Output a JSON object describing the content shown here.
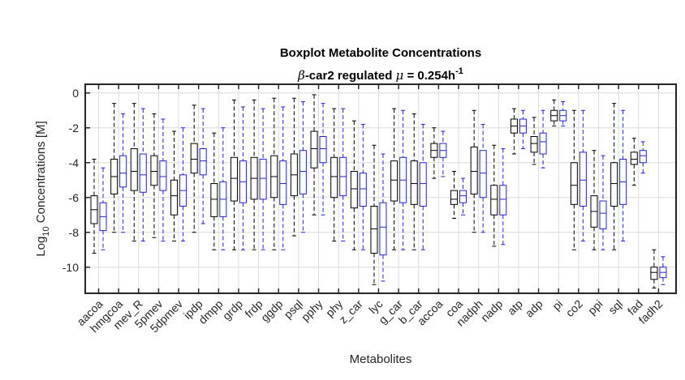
{
  "chart_data": {
    "type": "box",
    "title_line1": "Boxplot Metabolite Concentrations",
    "title_line2": {
      "beta": "β",
      "part1": "-car2 regulated ",
      "mu": "μ",
      "part2": " = 0.254h",
      "sup": "-1"
    },
    "xlabel": "Metabolites",
    "ylabel": {
      "prefix": "Log",
      "sub": "10",
      "suffix": " Concentrations [M]"
    },
    "ylim": [
      -11.5,
      0.5
    ],
    "yticks": [
      0,
      -2,
      -4,
      -6,
      -8,
      -10
    ],
    "grid": true,
    "categories": [
      "aacoa",
      "hmgcoa",
      "mev_R",
      "5pmev",
      "5dpmev",
      "ipdp",
      "dmpp",
      "grdp",
      "frdp",
      "ggdp",
      "psql",
      "pphy",
      "phy",
      "z_car",
      "lyc",
      "g_car",
      "b_car",
      "accoa",
      "coa",
      "nadph",
      "nadp",
      "atp",
      "adp",
      "pi",
      "co2",
      "ppi",
      "sql",
      "fad",
      "fadh2"
    ],
    "series": [
      {
        "color": "#000000",
        "boxes": [
          {
            "min": -9.2,
            "q1": -7.5,
            "median": -6.7,
            "q3": -5.9,
            "max": -3.8
          },
          {
            "min": -8.0,
            "q1": -5.8,
            "median": -4.8,
            "q3": -3.8,
            "max": -0.6
          },
          {
            "min": -8.5,
            "q1": -5.6,
            "median": -4.5,
            "q3": -3.2,
            "max": -0.6
          },
          {
            "min": -8.3,
            "q1": -5.3,
            "median": -4.5,
            "q3": -3.6,
            "max": -1.2
          },
          {
            "min": -8.5,
            "q1": -7.0,
            "median": -5.9,
            "q3": -5.0,
            "max": -2.2
          },
          {
            "min": -8.0,
            "q1": -4.6,
            "median": -3.8,
            "q3": -2.9,
            "max": -0.7
          },
          {
            "min": -9.0,
            "q1": -7.1,
            "median": -6.1,
            "q3": -5.2,
            "max": -2.3
          },
          {
            "min": -9.0,
            "q1": -6.2,
            "median": -4.9,
            "q3": -3.7,
            "max": -0.4
          },
          {
            "min": -9.0,
            "q1": -6.1,
            "median": -4.9,
            "q3": -3.7,
            "max": -0.4
          },
          {
            "min": -9.0,
            "q1": -6.0,
            "median": -4.8,
            "q3": -3.6,
            "max": -0.3
          },
          {
            "min": -8.2,
            "q1": -5.9,
            "median": -4.7,
            "q3": -3.5,
            "max": -0.3
          },
          {
            "min": -7.0,
            "q1": -4.3,
            "median": -3.2,
            "q3": -2.2,
            "max": -0.1
          },
          {
            "min": -8.5,
            "q1": -6.0,
            "median": -4.8,
            "q3": -3.7,
            "max": -0.9
          },
          {
            "min": -9.0,
            "q1": -6.6,
            "median": -5.5,
            "q3": -4.5,
            "max": -1.6
          },
          {
            "min": -11.0,
            "q1": -9.2,
            "median": -7.8,
            "q3": -6.5,
            "max": -3.0
          },
          {
            "min": -9.0,
            "q1": -6.2,
            "median": -5.0,
            "q3": -3.9,
            "max": -0.9
          },
          {
            "min": -9.0,
            "q1": -6.4,
            "median": -5.2,
            "q3": -3.9,
            "max": -1.2
          },
          {
            "min": -4.9,
            "q1": -3.7,
            "median": -3.3,
            "q3": -2.9,
            "max": -2.0
          },
          {
            "min": -7.2,
            "q1": -6.4,
            "median": -6.1,
            "q3": -5.6,
            "max": -4.5
          },
          {
            "min": -8.0,
            "q1": -5.8,
            "median": -4.5,
            "q3": -3.1,
            "max": -1.0
          },
          {
            "min": -8.8,
            "q1": -7.0,
            "median": -6.1,
            "q3": -5.3,
            "max": -3.0
          },
          {
            "min": -3.5,
            "q1": -2.3,
            "median": -1.9,
            "q3": -1.5,
            "max": -0.9
          },
          {
            "min": -4.1,
            "q1": -3.4,
            "median": -2.9,
            "q3": -2.5,
            "max": -1.4
          },
          {
            "min": -1.9,
            "q1": -1.6,
            "median": -1.3,
            "q3": -1.0,
            "max": -0.4
          },
          {
            "min": -9.0,
            "q1": -6.4,
            "median": -5.3,
            "q3": -4.0,
            "max": -1.0
          },
          {
            "min": -9.0,
            "q1": -7.7,
            "median": -6.8,
            "q3": -5.9,
            "max": -3.3
          },
          {
            "min": -9.0,
            "q1": -6.5,
            "median": -5.2,
            "q3": -4.0,
            "max": -0.6
          },
          {
            "min": -5.3,
            "q1": -4.1,
            "median": -3.8,
            "q3": -3.4,
            "max": -2.6
          },
          {
            "min": -11.2,
            "q1": -10.7,
            "median": -10.3,
            "q3": -10.0,
            "max": -9.0
          }
        ]
      },
      {
        "color": "#2424d0",
        "boxes": [
          {
            "min": -9.0,
            "q1": -7.9,
            "median": -7.1,
            "q3": -6.3,
            "max": -4.3
          },
          {
            "min": -8.0,
            "q1": -5.4,
            "median": -4.6,
            "q3": -3.6,
            "max": -1.2
          },
          {
            "min": -8.5,
            "q1": -5.7,
            "median": -4.7,
            "q3": -3.5,
            "max": -0.9
          },
          {
            "min": -8.5,
            "q1": -5.6,
            "median": -4.8,
            "q3": -3.9,
            "max": -1.5
          },
          {
            "min": -8.5,
            "q1": -6.5,
            "median": -5.6,
            "q3": -4.7,
            "max": -2.0
          },
          {
            "min": -7.5,
            "q1": -4.7,
            "median": -3.9,
            "q3": -3.2,
            "max": -0.9
          },
          {
            "min": -9.0,
            "q1": -7.1,
            "median": -6.1,
            "q3": -5.1,
            "max": -2.0
          },
          {
            "min": -9.0,
            "q1": -6.3,
            "median": -5.1,
            "q3": -3.9,
            "max": -0.8
          },
          {
            "min": -9.0,
            "q1": -6.1,
            "median": -4.9,
            "q3": -3.8,
            "max": -0.9
          },
          {
            "min": -9.0,
            "q1": -6.4,
            "median": -5.2,
            "q3": -3.9,
            "max": -0.8
          },
          {
            "min": -8.0,
            "q1": -5.8,
            "median": -4.5,
            "q3": -3.3,
            "max": -0.5
          },
          {
            "min": -7.0,
            "q1": -4.0,
            "median": -3.2,
            "q3": -2.5,
            "max": -0.6
          },
          {
            "min": -8.5,
            "q1": -5.9,
            "median": -4.8,
            "q3": -3.7,
            "max": -0.9
          },
          {
            "min": -9.0,
            "q1": -6.5,
            "median": -5.5,
            "q3": -4.6,
            "max": -1.8
          },
          {
            "min": -10.8,
            "q1": -9.3,
            "median": -7.7,
            "q3": -6.3,
            "max": -3.5
          },
          {
            "min": -9.0,
            "q1": -6.3,
            "median": -5.0,
            "q3": -3.7,
            "max": -1.0
          },
          {
            "min": -9.0,
            "q1": -6.5,
            "median": -5.2,
            "q3": -4.0,
            "max": -1.8
          },
          {
            "min": -4.8,
            "q1": -3.7,
            "median": -3.3,
            "q3": -2.9,
            "max": -2.2
          },
          {
            "min": -7.0,
            "q1": -6.3,
            "median": -5.9,
            "q3": -5.6,
            "max": -4.9
          },
          {
            "min": -8.0,
            "q1": -6.0,
            "median": -4.6,
            "q3": -3.3,
            "max": -1.8
          },
          {
            "min": -8.7,
            "q1": -7.0,
            "median": -6.1,
            "q3": -5.3,
            "max": -3.2
          },
          {
            "min": -3.2,
            "q1": -2.3,
            "median": -1.9,
            "q3": -1.5,
            "max": -1.0
          },
          {
            "min": -4.3,
            "q1": -3.5,
            "median": -2.8,
            "q3": -2.3,
            "max": -1.0
          },
          {
            "min": -1.9,
            "q1": -1.6,
            "median": -1.3,
            "q3": -1.0,
            "max": -0.5
          },
          {
            "min": -8.5,
            "q1": -6.5,
            "median": -5.0,
            "q3": -3.4,
            "max": -1.0
          },
          {
            "min": -9.0,
            "q1": -7.8,
            "median": -6.9,
            "q3": -6.2,
            "max": -3.6
          },
          {
            "min": -8.5,
            "q1": -6.4,
            "median": -5.1,
            "q3": -3.8,
            "max": -1.0
          },
          {
            "min": -4.6,
            "q1": -4.0,
            "median": -3.6,
            "q3": -3.3,
            "max": -2.8
          },
          {
            "min": -11.0,
            "q1": -10.6,
            "median": -10.3,
            "q3": -10.0,
            "max": -9.4
          }
        ]
      }
    ]
  }
}
